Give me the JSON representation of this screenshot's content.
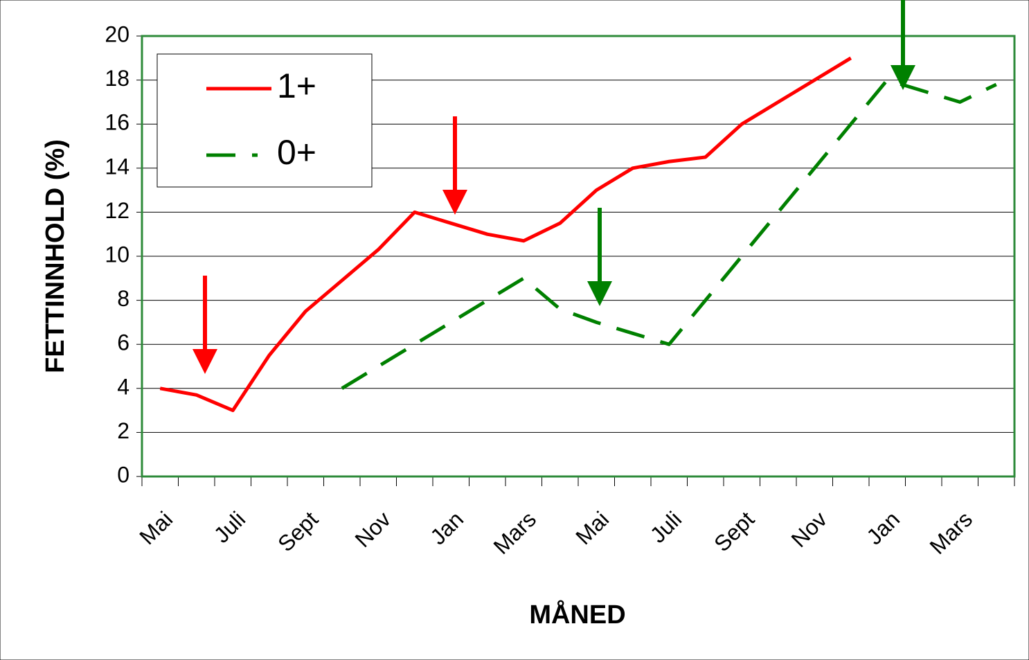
{
  "chart_data": {
    "type": "line",
    "x_label": "MÅNED",
    "y_label": "FETTINNHOLD (%)",
    "categories": [
      "Mai",
      null,
      "Juli",
      null,
      "Sept",
      null,
      "Nov",
      null,
      "Jan",
      null,
      "Mars",
      null,
      "Mai",
      null,
      "Juli",
      null,
      "Sept",
      null,
      "Nov",
      null,
      "Jan",
      null,
      "Mars",
      null
    ],
    "series": [
      {
        "name": "1+",
        "color": "#ff0000",
        "dashed": false,
        "values": [
          4.0,
          3.7,
          3.0,
          5.5,
          7.5,
          8.9,
          10.3,
          12.0,
          11.5,
          11.0,
          10.7,
          11.5,
          13.0,
          14.0,
          14.3,
          14.5,
          16.0,
          17.0,
          18.0,
          19.0,
          null,
          null,
          null,
          null
        ]
      },
      {
        "name": "0+",
        "color": "#008000",
        "dashed": true,
        "values": [
          null,
          null,
          null,
          null,
          null,
          4.0,
          5.0,
          6.0,
          7.0,
          8.0,
          9.0,
          7.6,
          7.0,
          6.5,
          6.0,
          8.0,
          10.0,
          12.0,
          14.0,
          16.0,
          18.0,
          17.5,
          17.0,
          17.8
        ]
      }
    ],
    "ylim": [
      0,
      20
    ],
    "yticks": [
      0,
      2,
      4,
      6,
      8,
      10,
      12,
      14,
      16,
      18,
      20
    ],
    "grid": true,
    "legend": "upper left"
  }
}
